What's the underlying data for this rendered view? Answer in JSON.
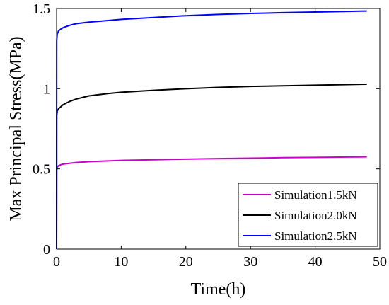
{
  "chart_data": {
    "type": "line",
    "xlabel": "Time(h)",
    "ylabel": "Max Principal Stress(MPa)",
    "xlim": [
      0,
      50
    ],
    "ylim": [
      0,
      1.5
    ],
    "xticks": [
      0,
      10,
      20,
      30,
      40,
      50
    ],
    "xtick_labels": [
      "0",
      "10",
      "20",
      "30",
      "40",
      "50"
    ],
    "yticks": [
      0,
      0.5,
      1,
      1.5
    ],
    "ytick_labels": [
      "0",
      "0.5",
      "1",
      "1.5"
    ],
    "grid": false,
    "legend_position": "bottom-right",
    "series": [
      {
        "name": "Simulation1.5kN",
        "color": "#cc00cc",
        "x": [
          0,
          0.02,
          0.1,
          0.3,
          0.6,
          1,
          2,
          3,
          5,
          8,
          10,
          15,
          20,
          25,
          30,
          35,
          40,
          45,
          48
        ],
        "y": [
          0,
          0.49,
          0.51,
          0.52,
          0.525,
          0.53,
          0.535,
          0.54,
          0.545,
          0.55,
          0.553,
          0.557,
          0.561,
          0.564,
          0.567,
          0.57,
          0.572,
          0.574,
          0.575
        ]
      },
      {
        "name": "Simulation2.0kN",
        "color": "#000000",
        "x": [
          0,
          0.02,
          0.1,
          0.3,
          0.6,
          1,
          2,
          3,
          5,
          8,
          10,
          15,
          20,
          25,
          30,
          35,
          40,
          45,
          48
        ],
        "y": [
          0,
          0.83,
          0.86,
          0.875,
          0.885,
          0.9,
          0.92,
          0.935,
          0.955,
          0.97,
          0.978,
          0.99,
          1.0,
          1.008,
          1.014,
          1.018,
          1.022,
          1.026,
          1.028
        ]
      },
      {
        "name": "Simulation2.5kN",
        "color": "#0000ff",
        "x": [
          0,
          0.02,
          0.1,
          0.3,
          0.6,
          1,
          2,
          3,
          5,
          8,
          10,
          15,
          20,
          25,
          30,
          35,
          40,
          45,
          48
        ],
        "y": [
          0,
          1.3,
          1.34,
          1.36,
          1.37,
          1.38,
          1.395,
          1.405,
          1.415,
          1.425,
          1.432,
          1.444,
          1.455,
          1.463,
          1.469,
          1.474,
          1.478,
          1.482,
          1.484
        ]
      }
    ]
  }
}
